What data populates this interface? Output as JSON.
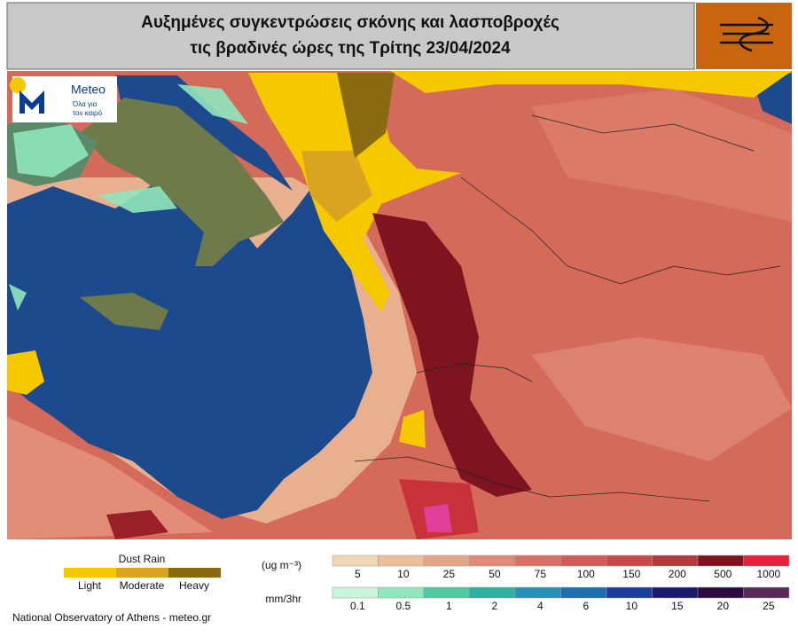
{
  "header": {
    "title_lines": [
      "Αυξημένες συγκεντρώσεις σκόνης και λασποβροχές",
      "τις βραδινές ώρες της Τρίτης 23/04/2024"
    ]
  },
  "logo": {
    "name": "Meteo",
    "tagline_lines": [
      "Όλα για",
      "τον καιρό"
    ]
  },
  "legend": {
    "dust_rain": {
      "title": "Dust Rain",
      "levels": [
        {
          "label": "Light",
          "color": "#f5c800"
        },
        {
          "label": "Moderate",
          "color": "#d9a520"
        },
        {
          "label": "Heavy",
          "color": "#8a6a10"
        }
      ]
    },
    "concentration": {
      "unit": "(ug m⁻³)",
      "ticks": [
        5,
        10,
        25,
        50,
        75,
        100,
        150,
        200,
        500,
        1000
      ],
      "colors": [
        "#f0d6b4",
        "#ecbf9a",
        "#e5a587",
        "#df8b78",
        "#d97068",
        "#d45a58",
        "#c84848",
        "#b23a3a",
        "#7e1420",
        "#e8203a"
      ]
    },
    "precipitation": {
      "unit": "mm/3hr",
      "ticks": [
        0.1,
        0.5,
        1,
        2,
        4,
        6,
        10,
        15,
        20,
        25
      ],
      "colors": [
        "#c8f5dc",
        "#90e6bc",
        "#50c8a0",
        "#30b0a0",
        "#2890b8",
        "#1e6eb0",
        "#1a3c9a",
        "#1a1a70",
        "#2a0a40",
        "#5a2a5a"
      ]
    }
  },
  "footer": {
    "credit": "National Observatory of Athens - meteo.gr"
  }
}
